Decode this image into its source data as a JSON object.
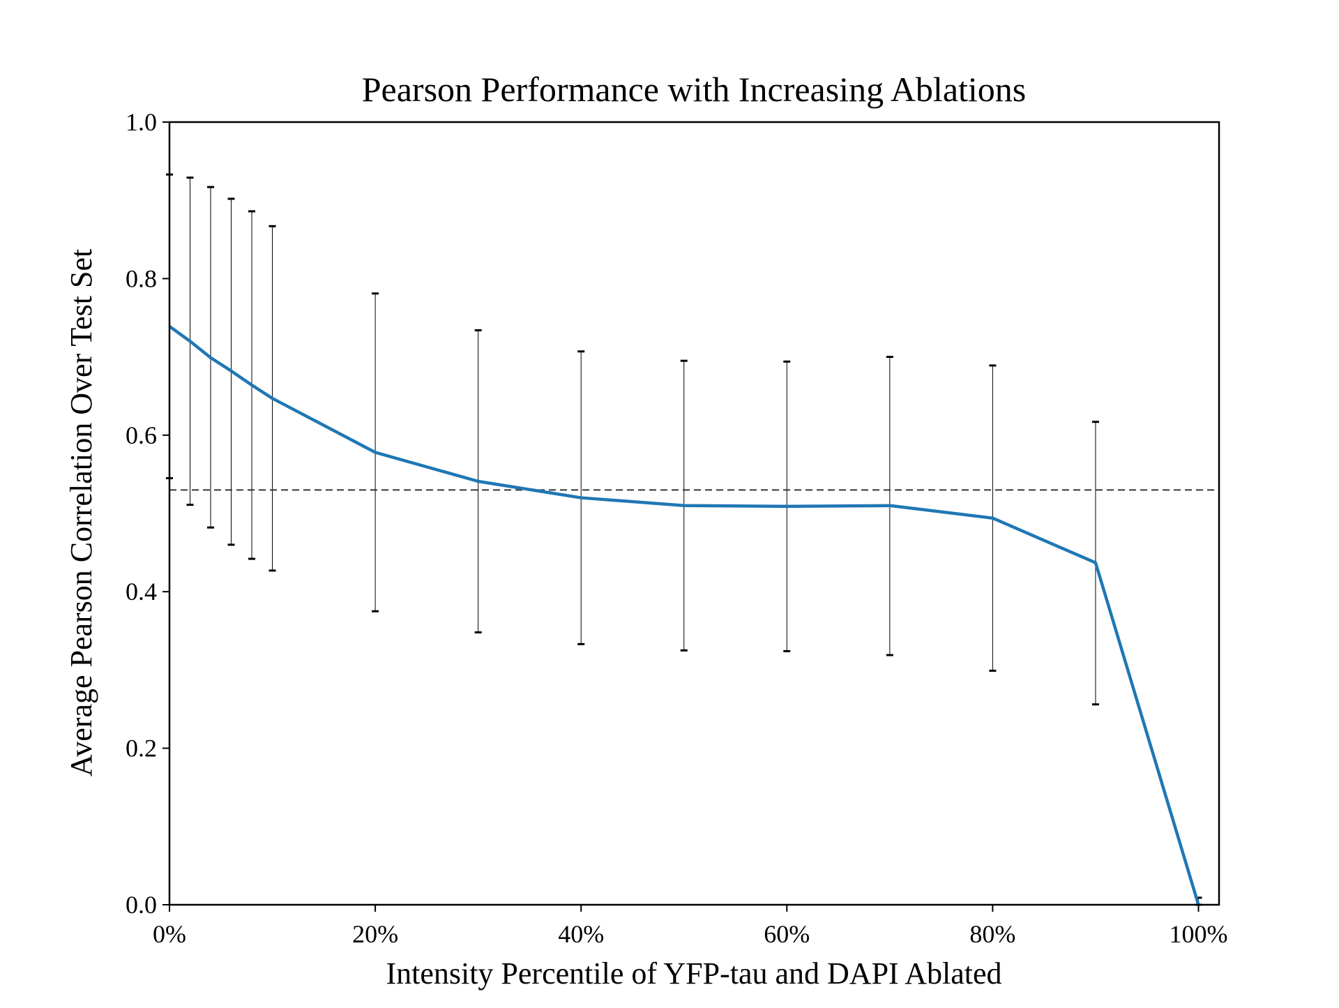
{
  "chart_data": {
    "type": "line",
    "title": "Pearson Performance with Increasing Ablations",
    "xlabel": "Intensity Percentile of YFP-tau and DAPI Ablated",
    "ylabel": "Average Pearson Correlation Over Test Set",
    "xlim": [
      0,
      102
    ],
    "ylim": [
      0.0,
      1.0
    ],
    "x_ticks": [
      0,
      20,
      40,
      60,
      80,
      100
    ],
    "x_tick_labels": [
      "0%",
      "20%",
      "40%",
      "60%",
      "80%",
      "100%"
    ],
    "y_ticks": [
      0.0,
      0.2,
      0.4,
      0.6,
      0.8,
      1.0
    ],
    "y_tick_labels": [
      "0.0",
      "0.2",
      "0.4",
      "0.6",
      "0.8",
      "1.0"
    ],
    "grid": false,
    "legend": "none",
    "reference_line": {
      "y": 0.53,
      "style": "dashed",
      "color": "#333333"
    },
    "series": [
      {
        "color": "#1f77b4",
        "x": [
          0,
          2,
          4,
          6,
          8,
          10,
          20,
          30,
          40,
          50,
          60,
          70,
          80,
          90,
          100
        ],
        "values": [
          0.739,
          0.72,
          0.699,
          0.682,
          0.664,
          0.647,
          0.578,
          0.541,
          0.52,
          0.51,
          0.509,
          0.51,
          0.494,
          0.437,
          0.0
        ]
      }
    ],
    "error_bars": {
      "color": "#000000",
      "x": [
        0,
        2,
        4,
        6,
        8,
        10,
        20,
        30,
        40,
        50,
        60,
        70,
        80,
        90,
        100
      ],
      "lower": [
        0.545,
        0.511,
        0.482,
        0.46,
        0.442,
        0.427,
        0.375,
        0.348,
        0.333,
        0.325,
        0.324,
        0.319,
        0.299,
        0.256,
        0.0
      ],
      "upper": [
        0.933,
        0.929,
        0.917,
        0.902,
        0.886,
        0.867,
        0.781,
        0.734,
        0.707,
        0.695,
        0.694,
        0.7,
        0.689,
        0.617,
        0.009
      ]
    }
  }
}
